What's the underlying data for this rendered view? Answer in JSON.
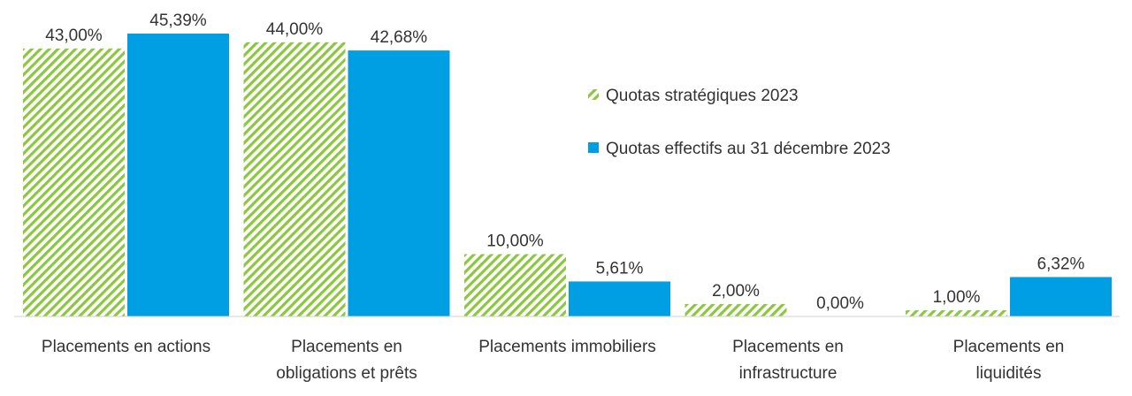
{
  "chart_data": {
    "type": "bar",
    "categories": [
      [
        "Placements en actions"
      ],
      [
        "Placements en",
        "obligations et prêts"
      ],
      [
        "Placements immobiliers"
      ],
      [
        "Placements en",
        "infrastructure"
      ],
      [
        "Placements en",
        "liquidités"
      ]
    ],
    "series": [
      {
        "name": "Quotas stratégiques 2023",
        "values": [
          43.0,
          44.0,
          10.0,
          2.0,
          1.0
        ],
        "labels": [
          "43,00%",
          "44,00%",
          "10,00%",
          "2,00%",
          "1,00%"
        ],
        "color": "#8DC63F",
        "fill_style": "hatched"
      },
      {
        "name": "Quotas effectifs au 31 décembre 2023",
        "values": [
          45.39,
          42.68,
          5.61,
          0.0,
          6.32
        ],
        "labels": [
          "45,39%",
          "42,68%",
          "5,61%",
          "0,00%",
          "6,32%"
        ],
        "color": "#009FE3",
        "fill_style": "solid"
      }
    ],
    "title": "",
    "xlabel": "",
    "ylabel": "",
    "ylim": [
      0,
      48
    ],
    "grid": false,
    "legend_position": "right"
  }
}
